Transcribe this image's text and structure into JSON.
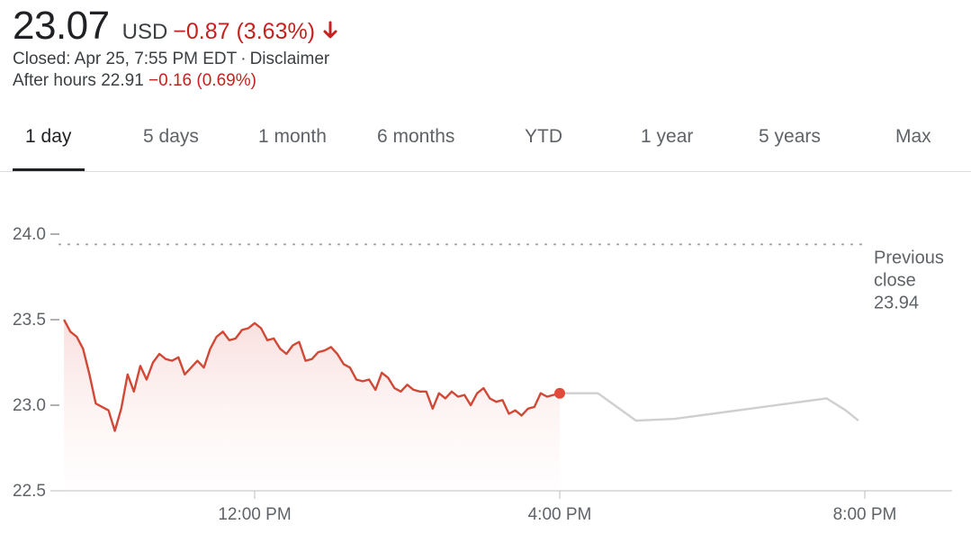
{
  "quote": {
    "price": "23.07",
    "currency": "USD",
    "change": "−0.87 (3.63%)",
    "closed_text": "Closed: Apr 25, 7:55 PM EDT",
    "separator": "·",
    "disclaimer": "Disclaimer",
    "after_hours_label": "After hours 22.91",
    "after_hours_change": "−0.16 (0.69%)"
  },
  "tabs": [
    {
      "label": "1 day",
      "active": true
    },
    {
      "label": "5 days",
      "active": false
    },
    {
      "label": "1 month",
      "active": false
    },
    {
      "label": "6 months",
      "active": false
    },
    {
      "label": "YTD",
      "active": false
    },
    {
      "label": "1 year",
      "active": false
    },
    {
      "label": "5 years",
      "active": false
    },
    {
      "label": "Max",
      "active": false
    }
  ],
  "colors": {
    "accent_down": "#c5221f",
    "line_regular": "#d14836",
    "line_after_hours": "#cfcfcf",
    "grid": "#dadce0",
    "text_muted": "#5f6368"
  },
  "icons": {
    "change_direction": "arrow-down-icon"
  },
  "chart_data": {
    "type": "line",
    "title": "",
    "xlabel": "",
    "ylabel": "",
    "ylim": [
      22.5,
      24.0
    ],
    "y_ticks": [
      "24.0",
      "23.5",
      "23.0",
      "22.5"
    ],
    "x_tick_labels": [
      "12:00 PM",
      "4:00 PM",
      "8:00 PM"
    ],
    "previous_close": {
      "label_lines": [
        "Previous",
        "close",
        "23.94"
      ],
      "value": 23.94
    },
    "series": [
      {
        "segment": "regular",
        "x": [
          "09:30",
          "09:35",
          "09:40",
          "09:45",
          "09:50",
          "09:55",
          "10:00",
          "10:05",
          "10:10",
          "10:15",
          "10:20",
          "10:25",
          "10:30",
          "10:35",
          "10:40",
          "10:45",
          "10:50",
          "10:55",
          "11:00",
          "11:05",
          "11:10",
          "11:15",
          "11:20",
          "11:25",
          "11:30",
          "11:35",
          "11:40",
          "11:45",
          "11:50",
          "11:55",
          "12:00",
          "12:05",
          "12:10",
          "12:15",
          "12:20",
          "12:25",
          "12:30",
          "12:35",
          "12:40",
          "12:45",
          "12:50",
          "12:55",
          "13:00",
          "13:05",
          "13:10",
          "13:15",
          "13:20",
          "13:25",
          "13:30",
          "13:35",
          "13:40",
          "13:45",
          "13:50",
          "13:55",
          "14:00",
          "14:05",
          "14:10",
          "14:15",
          "14:20",
          "14:25",
          "14:30",
          "14:35",
          "14:40",
          "14:45",
          "14:50",
          "14:55",
          "15:00",
          "15:05",
          "15:10",
          "15:15",
          "15:20",
          "15:25",
          "15:30",
          "15:35",
          "15:40",
          "15:45",
          "15:50",
          "15:55",
          "16:00"
        ],
        "values": [
          23.5,
          23.43,
          23.4,
          23.33,
          23.18,
          23.01,
          22.99,
          22.97,
          22.85,
          22.98,
          23.18,
          23.08,
          23.23,
          23.15,
          23.25,
          23.3,
          23.27,
          23.26,
          23.28,
          23.18,
          23.22,
          23.26,
          23.22,
          23.33,
          23.4,
          23.43,
          23.38,
          23.39,
          23.44,
          23.45,
          23.48,
          23.45,
          23.38,
          23.39,
          23.33,
          23.3,
          23.35,
          23.37,
          23.26,
          23.27,
          23.31,
          23.32,
          23.34,
          23.3,
          23.24,
          23.22,
          23.15,
          23.14,
          23.15,
          23.09,
          23.19,
          23.16,
          23.1,
          23.08,
          23.12,
          23.09,
          23.08,
          23.08,
          22.98,
          23.07,
          23.04,
          23.08,
          23.05,
          23.06,
          23.0,
          23.07,
          23.1,
          23.04,
          23.02,
          23.03,
          22.95,
          22.97,
          22.94,
          22.98,
          22.99,
          23.07,
          23.05,
          23.06,
          23.07
        ]
      },
      {
        "segment": "after_hours",
        "x": [
          "16:00",
          "16:30",
          "17:00",
          "17:30",
          "18:00",
          "18:30",
          "19:00",
          "19:30",
          "19:45",
          "19:55"
        ],
        "values": [
          23.07,
          23.07,
          22.91,
          22.92,
          22.95,
          22.98,
          23.01,
          23.04,
          22.97,
          22.91
        ]
      }
    ]
  }
}
